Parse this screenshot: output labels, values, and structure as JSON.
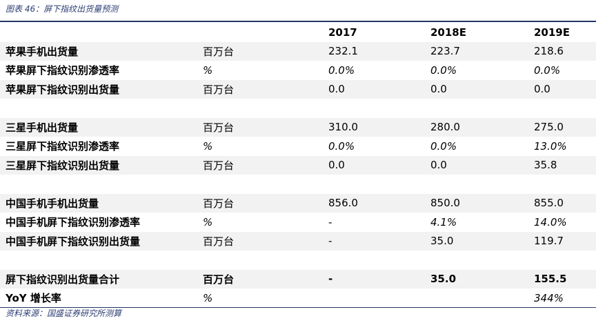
{
  "caption": "图表 46：屏下指纹出货量预测",
  "source": "资料来源：国盛证券研究所测算",
  "columns": [
    "2017",
    "2018E",
    "2019E"
  ],
  "rows": [
    {
      "label": "苹果手机出货量",
      "unit": "百万台",
      "values": [
        "232.1",
        "223.7",
        "218.6"
      ],
      "italic": [
        false,
        false,
        false
      ],
      "shade": true
    },
    {
      "label": "苹果屏下指纹识别渗透率",
      "unit": "%",
      "values": [
        "0.0%",
        "0.0%",
        "0.0%"
      ],
      "italic": [
        true,
        true,
        true
      ],
      "shade": false
    },
    {
      "label": "苹果屏下指纹识别出货量",
      "unit": "百万台",
      "values": [
        "0.0",
        "0.0",
        "0.0"
      ],
      "italic": [
        false,
        false,
        false
      ],
      "shade": true
    },
    {
      "label": "",
      "unit": "",
      "values": [
        "",
        "",
        ""
      ],
      "italic": [
        false,
        false,
        false
      ],
      "shade": false
    },
    {
      "label": "三星手机出货量",
      "unit": "百万台",
      "values": [
        "310.0",
        "280.0",
        "275.0"
      ],
      "italic": [
        false,
        false,
        false
      ],
      "shade": true
    },
    {
      "label": "三星屏下指纹识别渗透率",
      "unit": "%",
      "values": [
        "0.0%",
        "0.0%",
        "13.0%"
      ],
      "italic": [
        true,
        true,
        true
      ],
      "shade": false
    },
    {
      "label": "三星屏下指纹识别出货量",
      "unit": "百万台",
      "values": [
        "0.0",
        "0.0",
        "35.8"
      ],
      "italic": [
        false,
        false,
        false
      ],
      "shade": true
    },
    {
      "label": "",
      "unit": "",
      "values": [
        "",
        "",
        ""
      ],
      "italic": [
        false,
        false,
        false
      ],
      "shade": false
    },
    {
      "label": "中国手机手机出货量",
      "unit": "百万台",
      "values": [
        "856.0",
        "850.0",
        "855.0"
      ],
      "italic": [
        false,
        false,
        false
      ],
      "shade": true
    },
    {
      "label": "中国手机屏下指纹识别渗透率",
      "unit": "%",
      "values": [
        "-",
        "4.1%",
        "14.0%"
      ],
      "italic": [
        false,
        true,
        true
      ],
      "shade": false
    },
    {
      "label": "中国手机屏下指纹识别出货量",
      "unit": "百万台",
      "values": [
        "-",
        "35.0",
        "119.7"
      ],
      "italic": [
        false,
        false,
        false
      ],
      "shade": true
    },
    {
      "label": "",
      "unit": "",
      "values": [
        "",
        "",
        ""
      ],
      "italic": [
        false,
        false,
        false
      ],
      "shade": false
    },
    {
      "label": "屏下指纹识别出货量合计",
      "unit": "百万台",
      "values": [
        "-",
        "35.0",
        "155.5"
      ],
      "italic": [
        false,
        false,
        false
      ],
      "shade": true,
      "bold": true
    },
    {
      "label": "YoY 增长率",
      "unit": "%",
      "values": [
        "",
        "",
        "344%"
      ],
      "italic": [
        false,
        false,
        true
      ],
      "shade": false
    }
  ]
}
